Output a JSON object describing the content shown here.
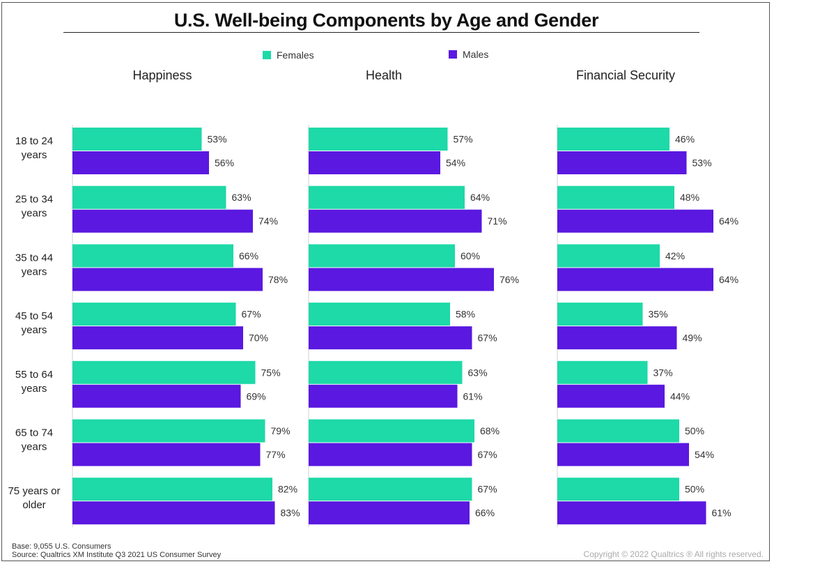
{
  "title": "U.S. Well-being Components by Age and Gender",
  "legend": [
    {
      "label": "Females",
      "color": "#1ED9A8"
    },
    {
      "label": "Males",
      "color": "#5A18E0"
    }
  ],
  "footer": {
    "base": "Base: 9,055 U.S. Consumers",
    "source": "Source: Qualtrics XM Institute Q3 2021 US Consumer Survey",
    "copyright": "Copyright © 2022 Qualtrics ® All rights reserved."
  },
  "chart_data": {
    "type": "bar",
    "orientation": "horizontal",
    "categories": [
      [
        "18 to 24",
        "years"
      ],
      [
        "25 to 34",
        "years"
      ],
      [
        "35 to 44",
        "years"
      ],
      [
        "45 to 54",
        "years"
      ],
      [
        "55 to 64",
        "years"
      ],
      [
        "65 to 74",
        "years"
      ],
      [
        "75 years or",
        "older"
      ]
    ],
    "value_unit": "%",
    "xlim": [
      0,
      100
    ],
    "panels": [
      {
        "title": "Happiness",
        "series": [
          {
            "name": "Females",
            "values": [
              53,
              63,
              66,
              67,
              75,
              79,
              82
            ]
          },
          {
            "name": "Males",
            "values": [
              56,
              74,
              78,
              70,
              69,
              77,
              83
            ]
          }
        ]
      },
      {
        "title": "Health",
        "series": [
          {
            "name": "Females",
            "values": [
              57,
              64,
              60,
              58,
              63,
              68,
              67
            ]
          },
          {
            "name": "Males",
            "values": [
              54,
              71,
              76,
              67,
              61,
              67,
              66
            ]
          }
        ]
      },
      {
        "title": "Financial Security",
        "series": [
          {
            "name": "Females",
            "values": [
              46,
              48,
              42,
              35,
              37,
              50,
              50
            ]
          },
          {
            "name": "Males",
            "values": [
              53,
              64,
              64,
              49,
              44,
              54,
              61
            ]
          }
        ]
      }
    ]
  }
}
